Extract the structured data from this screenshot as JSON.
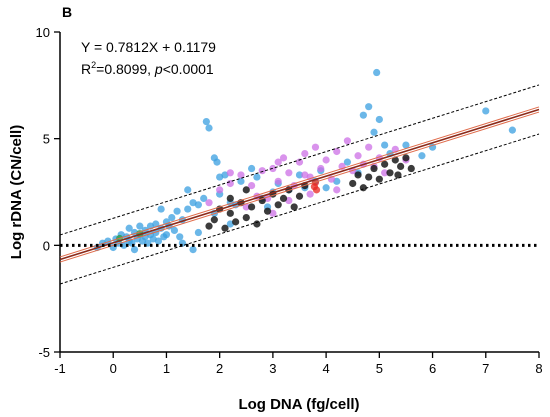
{
  "chart_data": {
    "type": "scatter",
    "panel_label": "B",
    "title": "",
    "xlabel": "Log DNA (fg/cell)",
    "ylabel": "Log rDNA (CN/cell)",
    "xlim": [
      -1,
      8
    ],
    "ylim": [
      -5,
      10
    ],
    "x_ticks": [
      -1,
      0,
      1,
      2,
      3,
      4,
      5,
      6,
      7,
      8
    ],
    "y_ticks": [
      -5,
      0,
      5,
      10
    ],
    "grid": false,
    "legend": "none",
    "annotations": {
      "equation": "Y = 0.7812X + 0.1179",
      "r2_prefix": "R",
      "r2_sup": "2",
      "r2_value": "=0.8099, ",
      "p_italic": "p",
      "p_value": "<0.0001"
    },
    "regression": {
      "slope": 0.7812,
      "intercept": 0.1179,
      "band_offset": 1.15
    },
    "colors": {
      "blue": "#3a9fe0",
      "violet": "#cc6fe6",
      "black": "#1a1a1a",
      "red": "#e8251f",
      "green": "#2e9e3a",
      "fit_line": "#8b2a1a",
      "ci_line": "#e06b4a"
    },
    "series": [
      {
        "color_key": "blue",
        "points": [
          [
            -0.2,
            0.1
          ],
          [
            -0.1,
            0.2
          ],
          [
            0,
            -0.1
          ],
          [
            0.05,
            0.3
          ],
          [
            0.1,
            0.1
          ],
          [
            0.15,
            0.5
          ],
          [
            0.2,
            0
          ],
          [
            0.25,
            0.4
          ],
          [
            0.3,
            0.2
          ],
          [
            0.3,
            0.8
          ],
          [
            0.35,
            0.1
          ],
          [
            0.4,
            0.6
          ],
          [
            0.4,
            -0.2
          ],
          [
            0.45,
            0.3
          ],
          [
            0.5,
            0.5
          ],
          [
            0.5,
            0.9
          ],
          [
            0.55,
            0.2
          ],
          [
            0.6,
            0.7
          ],
          [
            0.6,
            0.4
          ],
          [
            0.65,
            0.1
          ],
          [
            0.7,
            0.9
          ],
          [
            0.7,
            0.5
          ],
          [
            0.75,
            0.3
          ],
          [
            0.8,
            1.0
          ],
          [
            0.8,
            0.6
          ],
          [
            0.85,
            0.2
          ],
          [
            0.9,
            0.8
          ],
          [
            0.95,
            0.4
          ],
          [
            1.0,
            1.1
          ],
          [
            1.0,
            0.5
          ],
          [
            1.05,
            0.9
          ],
          [
            1.1,
            1.3
          ],
          [
            1.15,
            0.7
          ],
          [
            1.2,
            1.6
          ],
          [
            1.25,
            0.4
          ],
          [
            1.3,
            1.2
          ],
          [
            1.4,
            2.6
          ],
          [
            1.4,
            1.7
          ],
          [
            1.5,
            2.0
          ],
          [
            1.6,
            1.9
          ],
          [
            1.7,
            2.2
          ],
          [
            1.75,
            5.8
          ],
          [
            1.8,
            5.5
          ],
          [
            1.9,
            4.1
          ],
          [
            1.95,
            3.9
          ],
          [
            2.0,
            2.4
          ],
          [
            2.0,
            3.2
          ],
          [
            2.1,
            3.3
          ],
          [
            2.2,
            2.0
          ],
          [
            2.3,
            1.9
          ],
          [
            2.4,
            3.0
          ],
          [
            2.6,
            3.6
          ],
          [
            2.7,
            3.2
          ],
          [
            2.8,
            2.2
          ],
          [
            2.9,
            1.8
          ],
          [
            3.0,
            2.5
          ],
          [
            3.1,
            2.9
          ],
          [
            3.3,
            2.6
          ],
          [
            3.5,
            3.3
          ],
          [
            3.6,
            2.7
          ],
          [
            3.8,
            3.0
          ],
          [
            3.9,
            3.5
          ],
          [
            4.0,
            2.7
          ],
          [
            4.2,
            3.0
          ],
          [
            4.4,
            3.9
          ],
          [
            4.6,
            3.4
          ],
          [
            4.7,
            6.1
          ],
          [
            4.8,
            6.5
          ],
          [
            4.9,
            5.3
          ],
          [
            4.95,
            8.1
          ],
          [
            5.0,
            5.9
          ],
          [
            5.1,
            4.7
          ],
          [
            5.2,
            4.3
          ],
          [
            5.5,
            4.7
          ],
          [
            5.8,
            4.2
          ],
          [
            6.0,
            4.6
          ],
          [
            7.0,
            6.3
          ],
          [
            7.5,
            5.4
          ],
          [
            1.3,
            0.1
          ],
          [
            1.5,
            -0.2
          ],
          [
            1.6,
            0.6
          ],
          [
            1.9,
            1.5
          ],
          [
            2.2,
            1.0
          ],
          [
            0.9,
            1.7
          ],
          [
            -0.3,
            -0.1
          ]
        ]
      },
      {
        "color_key": "violet",
        "points": [
          [
            1.8,
            2.0
          ],
          [
            2.0,
            2.6
          ],
          [
            2.2,
            2.9
          ],
          [
            2.4,
            3.3
          ],
          [
            2.6,
            2.8
          ],
          [
            2.8,
            3.5
          ],
          [
            3.0,
            3.6
          ],
          [
            3.1,
            3.0
          ],
          [
            3.2,
            4.1
          ],
          [
            3.3,
            3.4
          ],
          [
            3.4,
            2.8
          ],
          [
            3.5,
            3.9
          ],
          [
            3.6,
            4.3
          ],
          [
            3.7,
            3.2
          ],
          [
            3.8,
            4.6
          ],
          [
            3.9,
            3.6
          ],
          [
            4.0,
            4.0
          ],
          [
            4.1,
            3.1
          ],
          [
            4.2,
            4.4
          ],
          [
            4.3,
            3.7
          ],
          [
            4.4,
            4.9
          ],
          [
            4.5,
            3.5
          ],
          [
            4.6,
            4.2
          ],
          [
            4.7,
            3.8
          ],
          [
            4.8,
            4.6
          ],
          [
            4.9,
            3.7
          ],
          [
            5.0,
            4.1
          ],
          [
            5.1,
            3.4
          ],
          [
            5.3,
            4.5
          ],
          [
            5.5,
            4.0
          ],
          [
            2.5,
            1.8
          ],
          [
            2.9,
            2.2
          ],
          [
            3.3,
            2.1
          ],
          [
            3.7,
            2.4
          ],
          [
            4.2,
            2.6
          ],
          [
            3.0,
            1.5
          ],
          [
            2.7,
            2.3
          ],
          [
            2.2,
            3.4
          ],
          [
            3.1,
            3.9
          ],
          [
            3.6,
            3.3
          ]
        ]
      },
      {
        "color_key": "black",
        "points": [
          [
            1.9,
            1.2
          ],
          [
            2.0,
            1.7
          ],
          [
            2.1,
            0.8
          ],
          [
            2.2,
            1.5
          ],
          [
            2.3,
            1.1
          ],
          [
            2.4,
            2.0
          ],
          [
            2.5,
            1.3
          ],
          [
            2.6,
            1.8
          ],
          [
            2.7,
            1.0
          ],
          [
            2.8,
            2.1
          ],
          [
            2.9,
            1.6
          ],
          [
            3.0,
            2.4
          ],
          [
            3.1,
            1.9
          ],
          [
            3.2,
            2.2
          ],
          [
            3.3,
            2.6
          ],
          [
            3.4,
            1.8
          ],
          [
            3.5,
            2.3
          ],
          [
            3.6,
            2.8
          ],
          [
            4.5,
            2.9
          ],
          [
            4.6,
            3.3
          ],
          [
            4.7,
            2.7
          ],
          [
            4.8,
            3.2
          ],
          [
            4.9,
            3.6
          ],
          [
            5.0,
            3.1
          ],
          [
            5.1,
            3.8
          ],
          [
            5.2,
            3.4
          ],
          [
            5.3,
            4.0
          ],
          [
            5.4,
            3.7
          ],
          [
            5.5,
            4.1
          ],
          [
            5.6,
            3.6
          ],
          [
            2.2,
            2.2
          ],
          [
            2.5,
            2.6
          ],
          [
            1.8,
            0.9
          ],
          [
            5.35,
            3.3
          ]
        ]
      },
      {
        "color_key": "red",
        "points": [
          [
            3.78,
            2.75
          ],
          [
            3.8,
            2.95
          ],
          [
            3.82,
            2.6
          ]
        ]
      },
      {
        "color_key": "green",
        "points": [
          [
            0.12,
            0.32
          ],
          [
            0.5,
            0.55
          ]
        ]
      }
    ]
  }
}
